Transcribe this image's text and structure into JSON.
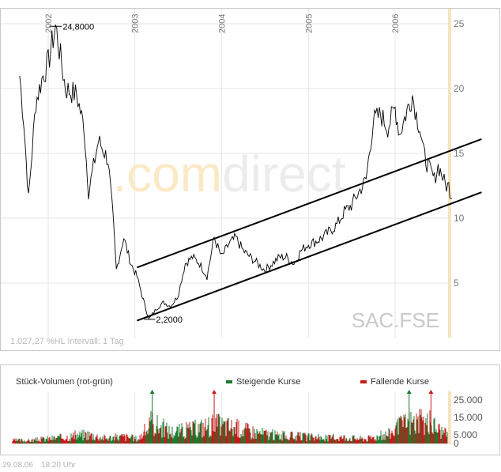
{
  "chart_data": [
    {
      "type": "line",
      "title": "",
      "watermark": ".comdirect",
      "symbol": "SAC.FSE",
      "info": "1.027,27 %HL Intervall: 1 Tag",
      "x_ticks": [
        "2002",
        "2003",
        "2004",
        "2005",
        "2006"
      ],
      "y_ticks": [
        "25",
        "20",
        "15",
        "10",
        "5"
      ],
      "ylim": [
        0,
        26
      ],
      "grid": true,
      "annotations": {
        "high": "24,8000",
        "low": "2,2000"
      },
      "series": [
        {
          "name": "",
          "x": [
            "2001-09-03",
            "2001-09-20",
            "2001-10-10",
            "2001-11-10",
            "2001-12-10",
            "2002-01-01",
            "2002-02-01",
            "2002-03-15",
            "2002-05-01",
            "2002-06-01",
            "2002-06-20",
            "2002-08-01",
            "2002-09-10",
            "2002-10-01",
            "2002-10-15",
            "2002-11-15",
            "2002-12-15",
            "2003-01-10",
            "2003-02-01",
            "2003-03-01",
            "2003-04-01",
            "2003-05-01",
            "2003-06-01",
            "2003-07-01",
            "2003-08-01",
            "2003-09-01",
            "2003-10-01",
            "2003-11-01",
            "2003-12-01",
            "2004-01-01",
            "2004-02-01",
            "2004-03-01",
            "2004-04-01",
            "2004-05-01",
            "2004-06-01",
            "2004-07-01",
            "2004-08-01",
            "2004-09-01",
            "2004-10-01",
            "2004-11-01",
            "2004-12-01",
            "2005-01-01",
            "2005-02-01",
            "2005-03-01",
            "2005-04-01",
            "2005-05-01",
            "2005-06-01",
            "2005-07-01",
            "2005-08-01",
            "2005-09-01",
            "2005-10-01",
            "2005-11-01",
            "2005-12-01",
            "2006-01-01",
            "2006-01-20",
            "2006-02-15",
            "2006-03-15",
            "2006-04-01",
            "2006-04-15",
            "2006-05-01",
            "2006-05-20",
            "2006-06-01",
            "2006-06-15",
            "2006-07-01",
            "2006-07-15",
            "2006-08-01",
            "2006-08-15",
            "2006-08-29"
          ],
          "y": [
            21.0,
            17.5,
            11.5,
            19.0,
            21.0,
            22.0,
            24.8,
            20.0,
            19.5,
            17.0,
            12.0,
            16.0,
            14.5,
            10.0,
            6.0,
            8.5,
            6.5,
            5.5,
            4.0,
            2.2,
            3.0,
            3.5,
            3.2,
            4.0,
            6.5,
            7.0,
            6.5,
            5.5,
            8.5,
            7.0,
            8.0,
            8.5,
            7.5,
            7.0,
            6.5,
            6.0,
            6.5,
            7.0,
            7.0,
            6.5,
            7.5,
            8.0,
            8.2,
            8.5,
            9.0,
            9.5,
            10.5,
            11.0,
            12.0,
            13.0,
            17.5,
            18.0,
            17.0,
            18.5,
            16.5,
            18.0,
            19.5,
            18.0,
            17.0,
            15.0,
            14.0,
            13.5,
            13.0,
            14.0,
            13.5,
            12.5,
            12.5,
            11.5
          ]
        }
      ],
      "trend_channel": {
        "upper": {
          "x": [
            "2003-01-10",
            "2006-12-31"
          ],
          "y": [
            6.2,
            16.1
          ]
        },
        "lower": {
          "x": [
            "2003-01-10",
            "2006-12-31"
          ],
          "y": [
            2.1,
            12.0
          ]
        }
      }
    },
    {
      "type": "bar",
      "title": "Stück-Volumen (rot-grün)",
      "legend": [
        {
          "label": "Steigende Kurse",
          "color": "#1a7a2e"
        },
        {
          "label": "Fallende Kurse",
          "color": "#c41a1a"
        }
      ],
      "y_ticks": [
        "25.000",
        "15.000",
        "5.000",
        "0"
      ],
      "ylim": [
        0,
        30000
      ],
      "series": [
        {
          "name": "Volumen",
          "x": [
            "2001-10-15",
            "2002-03-01",
            "2002-06-15",
            "2002-09-01",
            "2002-11-15",
            "2003-01-15",
            "2003-03-15",
            "2003-06-01",
            "2003-09-01",
            "2003-12-01",
            "2004-03-01",
            "2004-06-01",
            "2004-09-01",
            "2004-12-01",
            "2005-03-01",
            "2005-06-01",
            "2005-09-01",
            "2005-12-01",
            "2006-03-01",
            "2006-06-01",
            "2006-08-15"
          ],
          "values": [
            4000,
            8000,
            12000,
            7000,
            9000,
            6000,
            27000,
            15000,
            18000,
            25000,
            20000,
            14000,
            10000,
            9000,
            7000,
            8000,
            6000,
            12000,
            28000,
            26000,
            9000
          ]
        }
      ]
    }
  ],
  "colors": {
    "accent": "#f5e5bd",
    "frame": "#c8c8c8",
    "line": "#000000",
    "up": "#1a7a2e",
    "down": "#c41a1a"
  },
  "footer": {
    "date": "29.08.06",
    "time": "18:20 Uhr"
  }
}
